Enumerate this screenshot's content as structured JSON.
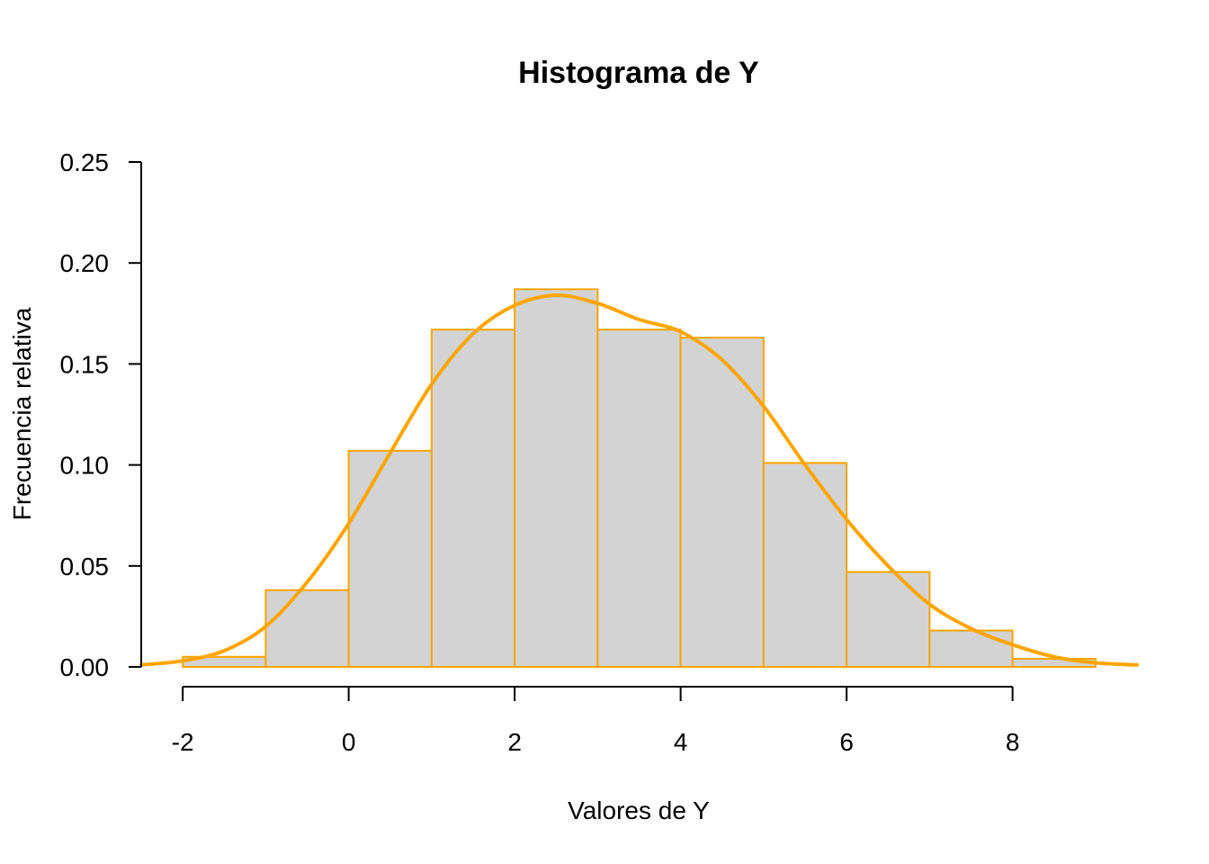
{
  "chart_data": {
    "type": "bar",
    "title": "Histograma de Y",
    "xlabel": "Valores de Y",
    "ylabel": "Frecuencia relativa",
    "bins": [
      {
        "x0": -2,
        "x1": -1,
        "value": 0.005
      },
      {
        "x0": -1,
        "x1": 0,
        "value": 0.038
      },
      {
        "x0": 0,
        "x1": 1,
        "value": 0.107
      },
      {
        "x0": 1,
        "x1": 2,
        "value": 0.167
      },
      {
        "x0": 2,
        "x1": 3,
        "value": 0.187
      },
      {
        "x0": 3,
        "x1": 4,
        "value": 0.167
      },
      {
        "x0": 4,
        "x1": 5,
        "value": 0.163
      },
      {
        "x0": 5,
        "x1": 6,
        "value": 0.101
      },
      {
        "x0": 6,
        "x1": 7,
        "value": 0.047
      },
      {
        "x0": 7,
        "x1": 8,
        "value": 0.018
      },
      {
        "x0": 8,
        "x1": 9,
        "value": 0.004
      }
    ],
    "density": {
      "name": "densidad",
      "x": [
        -2.5,
        -2,
        -1.5,
        -1,
        -0.5,
        0,
        0.5,
        1,
        1.5,
        2,
        2.5,
        3,
        3.5,
        4,
        4.5,
        5,
        5.5,
        6,
        6.5,
        7,
        7.5,
        8,
        8.5,
        9,
        9.5
      ],
      "y": [
        0.001,
        0.003,
        0.008,
        0.02,
        0.042,
        0.071,
        0.106,
        0.14,
        0.165,
        0.179,
        0.184,
        0.18,
        0.172,
        0.166,
        0.152,
        0.129,
        0.1,
        0.073,
        0.05,
        0.031,
        0.019,
        0.011,
        0.005,
        0.002,
        0.001
      ]
    },
    "xlim": [
      -2.5,
      9.5
    ],
    "ylim": [
      0,
      0.25
    ],
    "xticks": [
      -2,
      0,
      2,
      4,
      6,
      8
    ],
    "xtick_labels": [
      "-2",
      "0",
      "2",
      "4",
      "6",
      "8"
    ],
    "yticks": [
      0,
      0.05,
      0.1,
      0.15,
      0.2,
      0.25
    ],
    "ytick_labels": [
      "0.00",
      "0.05",
      "0.10",
      "0.15",
      "0.20",
      "0.25"
    ],
    "grid": false,
    "colors": {
      "bar_fill": "#d3d3d3",
      "bar_border": "#ffa500",
      "density_line": "#ffa500"
    }
  }
}
